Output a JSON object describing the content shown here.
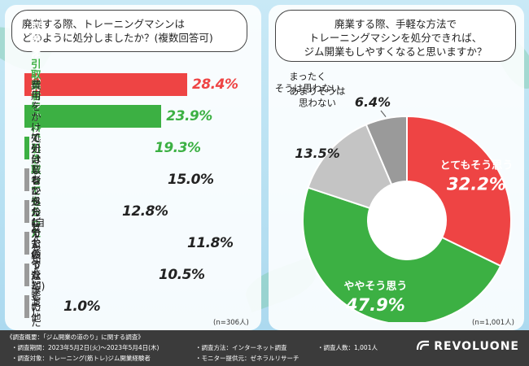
{
  "left": {
    "question": "廃業する際、トレーニングマシンは\nどのように処分しましたか？(複数回答可)",
    "n_note": "(n=306人)"
  },
  "right": {
    "question": "廃業する際、手軽な方法で\nトレーニングマシンを処分できれば、\nジム開業もしやすくなると思いますか？",
    "n_note": "(n=1,001人)"
  },
  "chart_data": [
    {
      "type": "bar",
      "orientation": "horizontal",
      "title": "廃業する際、トレーニングマシンはどのように処分しましたか？(複数回答可)",
      "unit": "%",
      "categories": [
        "買取業者に\n買い取ってもらった",
        "オークションサイトで売った",
        "引取業者に無料で\n引き取ってもらった",
        "費用をかけて処分業者に\n処分してもらった",
        "処分はしなかった\n(自分で使うなど)",
        "レンタルだったので返却した",
        "友人や知人に譲渡した",
        "その他"
      ],
      "values": [
        28.4,
        23.9,
        19.3,
        15.0,
        12.8,
        11.8,
        10.5,
        1.0
      ],
      "value_labels": [
        "28.4%",
        "23.9%",
        "19.3%",
        "15.0%",
        "12.8%",
        "11.8%",
        "10.5%",
        "1.0%"
      ],
      "colors": [
        "#ee4444",
        "#3cb043",
        "#3cb043",
        "#9a9a9a",
        "#9a9a9a",
        "#9a9a9a",
        "#9a9a9a",
        "#9a9a9a"
      ],
      "label_colors": [
        "#ffffff",
        "#ffffff",
        "#3cb043",
        "#222222",
        "#222222",
        "#222222",
        "#222222",
        "#222222"
      ],
      "value_colors": [
        "#ee4444",
        "#3cb043",
        "#3cb043",
        "#222222",
        "#222222",
        "#222222",
        "#222222",
        "#222222"
      ]
    },
    {
      "type": "pie",
      "donut": true,
      "title": "廃業する際、手軽な方法でトレーニングマシンを処分できれば、ジム開業もしやすくなると思いますか？",
      "unit": "%",
      "labels": [
        "とてもそう思う",
        "ややそう思う",
        "あまりそうは\n思わない",
        "まったく\nそうは思わない"
      ],
      "values": [
        32.2,
        47.9,
        13.5,
        6.4
      ],
      "value_labels": [
        "32.2%",
        "47.9%",
        "13.5%",
        "6.4%"
      ],
      "colors": [
        "#ee4444",
        "#3cb043",
        "#c4c4c4",
        "#9a9a9a"
      ]
    }
  ],
  "footer": {
    "title": "《調査概要：「ジム開業の道のり」に関する調査》",
    "period": "・調査期間：2023年5月2日(火)～2023年5月4日(木)",
    "target": "・調査対象：トレーニング(筋トレ)ジム開業経験者",
    "method": "・調査方法：インターネット調査",
    "provider": "・モニター提供元：ゼネラルリサーチ",
    "count": "・調査人数：1,001人",
    "logo": "REVOLUONE"
  }
}
